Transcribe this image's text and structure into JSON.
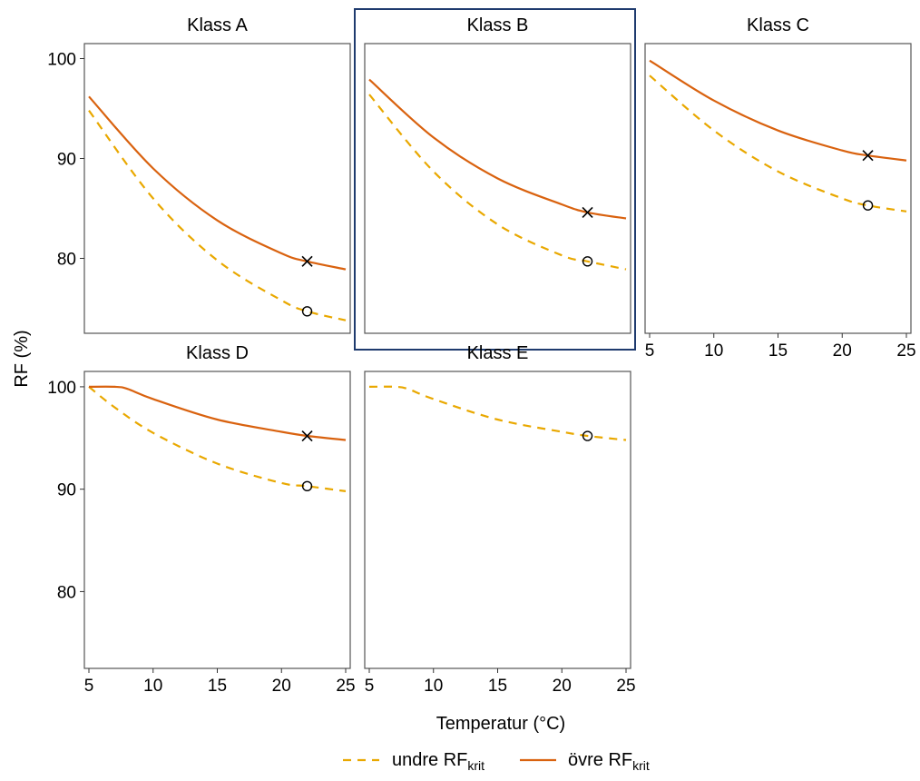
{
  "chart_data": {
    "type": "line",
    "ylabel": "RF (%)",
    "xlabel": "Temperatur (°C)",
    "xlim": [
      5,
      25
    ],
    "ylim": [
      72.5,
      101.5
    ],
    "x_ticks": [
      "5",
      "10",
      "15",
      "20",
      "25"
    ],
    "y_ticks": [
      "100",
      "90",
      "80"
    ],
    "highlighted_panel": "Klass B",
    "legend": {
      "position": "bottom",
      "entries": [
        {
          "key": "lower",
          "label_main": "undre RF",
          "label_sub": "krit",
          "style": "dashed",
          "color": "#E9A800"
        },
        {
          "key": "upper",
          "label_main": "övre RF",
          "label_sub": "krit",
          "style": "solid",
          "color": "#D9620F"
        }
      ]
    },
    "panels": [
      {
        "title": "Klass A",
        "lower": {
          "x": [
            5,
            10,
            15,
            20,
            22,
            25
          ],
          "y": [
            94.8,
            86.0,
            79.8,
            75.8,
            74.7,
            73.8
          ]
        },
        "upper": {
          "x": [
            5,
            10,
            15,
            20,
            22,
            25
          ],
          "y": [
            96.2,
            89.0,
            83.8,
            80.5,
            79.7,
            78.9
          ]
        },
        "markers": [
          {
            "type": "o",
            "x": 22,
            "y": 74.7
          },
          {
            "type": "x",
            "x": 22,
            "y": 79.7
          }
        ]
      },
      {
        "title": "Klass B",
        "lower": {
          "x": [
            5,
            10,
            15,
            20,
            22,
            25
          ],
          "y": [
            96.4,
            88.7,
            83.4,
            80.3,
            79.7,
            78.9
          ]
        },
        "upper": {
          "x": [
            5,
            10,
            15,
            20,
            22,
            25
          ],
          "y": [
            97.9,
            92.1,
            88.0,
            85.4,
            84.6,
            84.0
          ]
        },
        "markers": [
          {
            "type": "o",
            "x": 22,
            "y": 79.7
          },
          {
            "type": "x",
            "x": 22,
            "y": 84.6
          }
        ]
      },
      {
        "title": "Klass C",
        "lower": {
          "x": [
            5,
            10,
            15,
            20,
            22,
            25
          ],
          "y": [
            98.3,
            92.8,
            88.7,
            86.0,
            85.3,
            84.7
          ]
        },
        "upper": {
          "x": [
            5,
            10,
            15,
            20,
            22,
            25
          ],
          "y": [
            99.8,
            95.8,
            92.8,
            90.8,
            90.3,
            89.8
          ]
        },
        "markers": [
          {
            "type": "o",
            "x": 22,
            "y": 85.3
          },
          {
            "type": "x",
            "x": 22,
            "y": 90.3
          }
        ]
      },
      {
        "title": "Klass D",
        "lower": {
          "x": [
            5,
            7,
            10,
            15,
            20,
            22,
            25
          ],
          "y": [
            100.0,
            98.0,
            95.5,
            92.5,
            90.6,
            90.3,
            89.8
          ]
        },
        "upper": {
          "x": [
            5,
            7,
            8,
            10,
            15,
            20,
            22,
            25
          ],
          "y": [
            100.0,
            100.0,
            99.8,
            98.8,
            96.8,
            95.6,
            95.2,
            94.8
          ]
        },
        "markers": [
          {
            "type": "o",
            "x": 22,
            "y": 90.3
          },
          {
            "type": "x",
            "x": 22,
            "y": 95.2
          }
        ]
      },
      {
        "title": "Klass E",
        "lower": {
          "x": [
            5,
            7,
            8,
            10,
            15,
            20,
            22,
            25
          ],
          "y": [
            100.0,
            100.0,
            99.8,
            98.8,
            96.8,
            95.6,
            95.2,
            94.8
          ]
        },
        "upper": null,
        "markers": [
          {
            "type": "o",
            "x": 22,
            "y": 95.2
          }
        ]
      }
    ]
  }
}
